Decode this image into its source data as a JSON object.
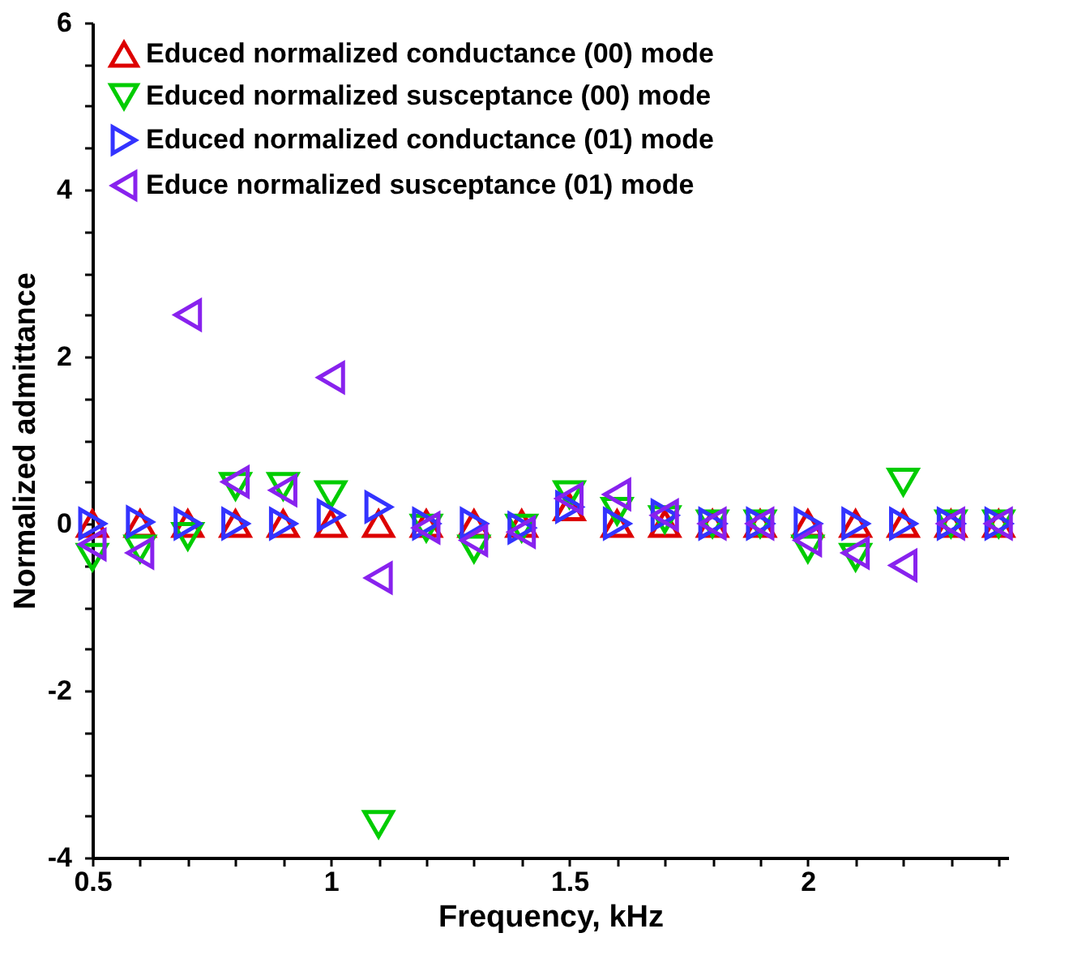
{
  "chart_data": {
    "type": "scatter",
    "xlabel": "Frequency, kHz",
    "ylabel": "Normalized admittance",
    "x": [
      0.5,
      0.6,
      0.7,
      0.8,
      0.9,
      1.0,
      1.1,
      1.2,
      1.3,
      1.4,
      1.5,
      1.6,
      1.7,
      1.8,
      1.9,
      2.0,
      2.1,
      2.2,
      2.3,
      2.4
    ],
    "series": [
      {
        "name": "Educed normalized conductance (00) mode",
        "color": "#dd0000",
        "marker": "triangle-up",
        "values": [
          0,
          0,
          0,
          0,
          0,
          0,
          0,
          0,
          0,
          0,
          0.2,
          0,
          0,
          0,
          0,
          0,
          0,
          0,
          0,
          0
        ]
      },
      {
        "name": "Educed normalized susceptance (00) mode",
        "color": "#00cc00",
        "marker": "triangle-down",
        "values": [
          -0.4,
          -0.3,
          -0.15,
          0.45,
          0.45,
          0.35,
          -3.6,
          -0.05,
          -0.3,
          -0.05,
          0.35,
          0.15,
          0.05,
          0,
          0,
          -0.3,
          -0.4,
          0.5,
          0,
          0
        ]
      },
      {
        "name": "Educed normalized conductance (01) mode",
        "color": "#3333ff",
        "marker": "triangle-right",
        "values": [
          0,
          0.02,
          0,
          0,
          0,
          0.1,
          0.2,
          0,
          0,
          -0.05,
          0.2,
          0,
          0.1,
          0,
          0,
          0,
          0,
          0,
          0,
          0
        ]
      },
      {
        "name": "Educe normalized susceptance (01) mode",
        "color": "#8822ee",
        "marker": "triangle-left",
        "values": [
          -0.25,
          -0.35,
          2.5,
          0.5,
          0.4,
          1.75,
          -0.65,
          -0.05,
          -0.2,
          -0.1,
          0.3,
          0.35,
          0.1,
          0,
          0,
          -0.2,
          -0.35,
          -0.5,
          0,
          0
        ]
      }
    ],
    "xlim": [
      0.5,
      2.42
    ],
    "ylim": [
      -4,
      6
    ],
    "xticks": [
      0.5,
      {
        "value": 0.6,
        "label": null
      },
      {
        "value": 0.7,
        "label": null
      },
      {
        "value": 0.8,
        "label": null
      },
      {
        "value": 0.9,
        "label": null
      },
      1,
      {
        "value": 1.1,
        "label": null
      },
      {
        "value": 1.2,
        "label": null
      },
      {
        "value": 1.3,
        "label": null
      },
      {
        "value": 1.4,
        "label": null
      },
      1.5,
      {
        "value": 1.6,
        "label": null
      },
      {
        "value": 1.7,
        "label": null
      },
      {
        "value": 1.8,
        "label": null
      },
      {
        "value": 1.9,
        "label": null
      },
      2,
      {
        "value": 2.1,
        "label": null
      },
      {
        "value": 2.2,
        "label": null
      },
      {
        "value": 2.3,
        "label": null
      },
      {
        "value": 2.4,
        "label": null
      }
    ],
    "yticks": [
      -4,
      {
        "value": -3.5,
        "label": null
      },
      {
        "value": -3,
        "label": null
      },
      {
        "value": -2.5,
        "label": null
      },
      -2,
      {
        "value": -1.5,
        "label": null
      },
      {
        "value": -1,
        "label": null
      },
      {
        "value": -0.5,
        "label": null
      },
      0,
      {
        "value": 0.5,
        "label": null
      },
      {
        "value": 1,
        "label": null
      },
      {
        "value": 1.5,
        "label": null
      },
      2,
      {
        "value": 2.5,
        "label": null
      },
      {
        "value": 3,
        "label": null
      },
      {
        "value": 3.5,
        "label": null
      },
      4,
      {
        "value": 4.5,
        "label": null
      },
      {
        "value": 5,
        "label": null
      },
      {
        "value": 5.5,
        "label": null
      },
      6
    ],
    "legend": "top left",
    "grid": false
  }
}
